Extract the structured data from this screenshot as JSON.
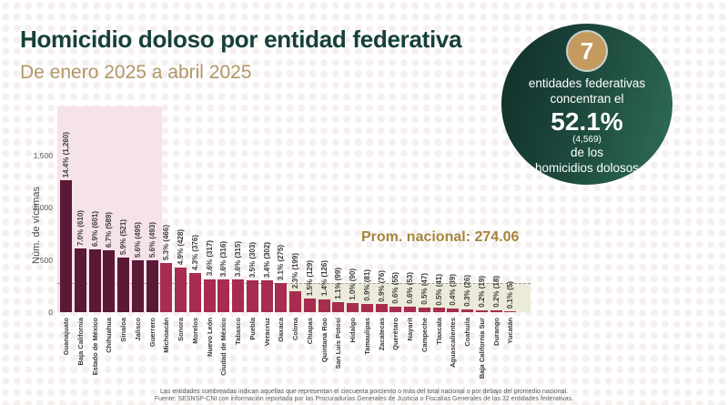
{
  "header": {
    "title": "Homicidio doloso por entidad federativa",
    "subtitle": "De enero 2025 a abril 2025"
  },
  "badge": {
    "number": "7",
    "line1": "entidades federativas",
    "line2": "concentran el",
    "percent": "52.1%",
    "count": "(4,569)",
    "line3": "de los",
    "line4": "homicidios dolosos"
  },
  "chart_data": {
    "type": "bar",
    "ylabel": "Núm. de víctimas",
    "ytick_labels": [
      "0",
      "500",
      "1,000",
      "1,500"
    ],
    "ytick_values": [
      0,
      500,
      1000,
      1500
    ],
    "ylim": [
      0,
      1960
    ],
    "categories": [
      "Guanajuato",
      "Baja California",
      "Estado de México",
      "Chihuahua",
      "Sinaloa",
      "Jalisco",
      "Guerrero",
      "Michoacán",
      "Sonora",
      "Morelos",
      "Nuevo León",
      "Ciudad de México",
      "Tabasco",
      "Puebla",
      "Veracruz",
      "Oaxaca",
      "Colima",
      "Chiapas",
      "Quintana Roo",
      "San Luis Potosí",
      "Hidalgo",
      "Tamaulipas",
      "Zacatecas",
      "Querétaro",
      "Nayarit",
      "Campeche",
      "Tlaxcala",
      "Aguascalientes",
      "Coahuila",
      "Baja California Sur",
      "Durango",
      "Yucatán"
    ],
    "values": [
      1260,
      610,
      601,
      589,
      521,
      495,
      493,
      466,
      428,
      376,
      317,
      316,
      315,
      303,
      302,
      275,
      199,
      129,
      126,
      99,
      90,
      81,
      76,
      55,
      53,
      47,
      41,
      39,
      26,
      19,
      18,
      5
    ],
    "bar_labels": [
      "14.4% (1,260)",
      "7.0% (610)",
      "6.9% (601)",
      "6.7% (589)",
      "5.9% (521)",
      "5.6% (495)",
      "5.6% (493)",
      "5.3% (466)",
      "4.9% (428)",
      "4.3% (376)",
      "3.6% (317)",
      "3.6% (316)",
      "3.6% (315)",
      "3.5% (303)",
      "3.4% (302)",
      "3.1% (275)",
      "2.3% (199)",
      "1.5% (129)",
      "1.4% (126)",
      "1.1% (99)",
      "1.0% (90)",
      "0.9% (81)",
      "0.9% (76)",
      "0.6% (55)",
      "0.6% (53)",
      "0.5% (47)",
      "0.5% (41)",
      "0.4% (39)",
      "0.3% (26)",
      "0.2% (19)",
      "0.2% (18)",
      "0.1% (5)"
    ],
    "national_avg": 274.06,
    "national_avg_label": "Prom. nacional: 274.06",
    "shading": {
      "top_group_count": 7,
      "below_avg_from_index": 16
    },
    "legend_position": "none",
    "grid": false
  },
  "footnote": {
    "line1": "Las entidades sombreadas indican aquellas que representan el cincuenta porciento o más del total nacional o por debajo del promedio nacional.",
    "line2": "Fuente: SESNSP-CNI con información reportada por las Procuradurías Generales de Justicia o Fiscalías Generales de las 32 entidades federativas."
  },
  "colors": {
    "title": "#16403a",
    "subtitle": "#b1976a",
    "bar_dark": "#5c1837",
    "bar_light": "#a72d50",
    "shade_pink": "#f5e3e9",
    "shade_cream": "#ecead9",
    "accent_gold": "#c49a5f",
    "avg_label": "#a5843c",
    "badge_green_dark": "#112e28",
    "badge_green_light": "#2f6e55"
  }
}
